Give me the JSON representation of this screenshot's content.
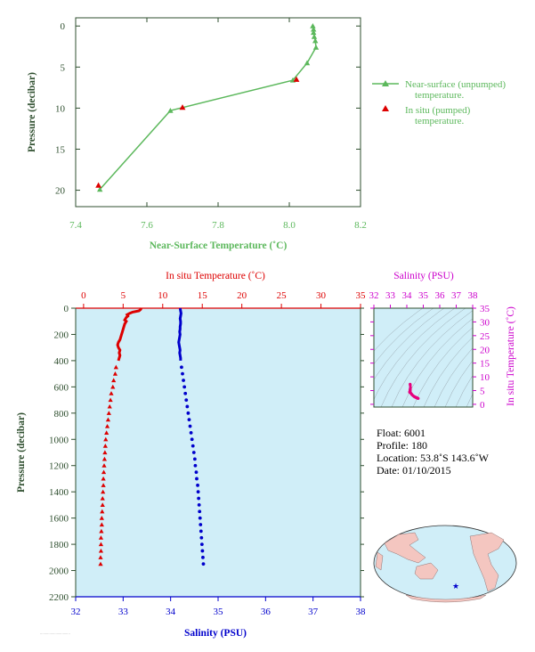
{
  "colors": {
    "near_surface": "#5cb85c",
    "in_situ_temp": "#dd0000",
    "salinity": "#0000cc",
    "ts_curve": "#e6007e",
    "axis_dark": "#2f4f2f",
    "magenta": "#cc00cc",
    "panel_bg": "#d0eef8"
  },
  "chart_data": [
    {
      "type": "line",
      "title": "",
      "xlabel": "Near-Surface Temperature (˚C)",
      "ylabel": "Pressure (decibar)",
      "xlim": [
        7.4,
        8.2
      ],
      "ylim": [
        22,
        -1
      ],
      "x_ticks": [
        "7.4",
        "7.6",
        "7.8",
        "8.0",
        "8.2"
      ],
      "y_ticks": [
        "0",
        "5",
        "10",
        "15",
        "20"
      ],
      "legend": [
        "Near-surface (unpumped) temperature.",
        "In situ (pumped) temperature."
      ],
      "legend_position": "right",
      "series": [
        {
          "name": "Near-surface (unpumped) temperature.",
          "marker": "triangle",
          "points": [
            [
              8.066,
              0.0
            ],
            [
              8.068,
              0.4
            ],
            [
              8.068,
              0.8
            ],
            [
              8.07,
              1.3
            ],
            [
              8.073,
              1.8
            ],
            [
              8.075,
              2.6
            ],
            [
              8.05,
              4.5
            ],
            [
              8.01,
              6.6
            ],
            [
              7.666,
              10.3
            ],
            [
              7.468,
              19.9
            ]
          ]
        },
        {
          "name": "In situ (pumped) temperature.",
          "marker": "triangle",
          "points": [
            [
              8.02,
              6.5
            ],
            [
              7.7,
              9.9
            ],
            [
              7.464,
              19.4
            ]
          ]
        }
      ]
    },
    {
      "type": "line",
      "title": "",
      "x_top_label": "In situ Temperature (˚C)",
      "x_top_ticks": [
        "0",
        "5",
        "10",
        "15",
        "20",
        "25",
        "30",
        "35"
      ],
      "x_top_lim": [
        -1,
        35
      ],
      "x_bottom_label": "Salinity (PSU)",
      "x_bottom_ticks": [
        "32",
        "33",
        "34",
        "35",
        "36",
        "37",
        "38"
      ],
      "x_bottom_lim": [
        32,
        38
      ],
      "ylabel": "Pressure (decibar)",
      "y_ticks": [
        "0",
        "200",
        "400",
        "600",
        "800",
        "1000",
        "1200",
        "1400",
        "1600",
        "1800",
        "2000",
        "2200"
      ],
      "ylim": [
        2200,
        0
      ],
      "series": [
        {
          "name": "In situ Temperature (˚C)",
          "axis": "top",
          "points": [
            [
              7.3,
              0
            ],
            [
              7.2,
              10
            ],
            [
              7.0,
              20
            ],
            [
              6.2,
              30
            ],
            [
              5.8,
              40
            ],
            [
              5.5,
              50
            ],
            [
              5.6,
              60
            ],
            [
              5.4,
              70
            ],
            [
              5.3,
              80
            ],
            [
              5.2,
              90
            ],
            [
              5.4,
              100
            ],
            [
              5.2,
              120
            ],
            [
              5.1,
              140
            ],
            [
              5.0,
              160
            ],
            [
              4.9,
              180
            ],
            [
              4.8,
              200
            ],
            [
              4.7,
              220
            ],
            [
              4.6,
              240
            ],
            [
              4.4,
              260
            ],
            [
              4.3,
              280
            ],
            [
              4.4,
              300
            ],
            [
              4.6,
              320
            ],
            [
              4.5,
              340
            ],
            [
              4.6,
              360
            ],
            [
              4.5,
              380
            ],
            [
              4.4,
              400
            ],
            [
              4.1,
              450
            ],
            [
              4.0,
              500
            ],
            [
              3.8,
              550
            ],
            [
              3.7,
              600
            ],
            [
              3.5,
              650
            ],
            [
              3.4,
              700
            ],
            [
              3.3,
              750
            ],
            [
              3.2,
              800
            ],
            [
              3.1,
              850
            ],
            [
              3.0,
              900
            ],
            [
              2.9,
              950
            ],
            [
              2.8,
              1000
            ],
            [
              2.75,
              1050
            ],
            [
              2.7,
              1100
            ],
            [
              2.65,
              1150
            ],
            [
              2.6,
              1200
            ],
            [
              2.55,
              1250
            ],
            [
              2.5,
              1300
            ],
            [
              2.5,
              1350
            ],
            [
              2.45,
              1400
            ],
            [
              2.4,
              1450
            ],
            [
              2.4,
              1500
            ],
            [
              2.35,
              1550
            ],
            [
              2.3,
              1600
            ],
            [
              2.3,
              1650
            ],
            [
              2.25,
              1700
            ],
            [
              2.2,
              1750
            ],
            [
              2.2,
              1800
            ],
            [
              2.2,
              1850
            ],
            [
              2.15,
              1900
            ],
            [
              2.15,
              1950
            ]
          ]
        },
        {
          "name": "Salinity (PSU)",
          "axis": "bottom",
          "points": [
            [
              34.2,
              0
            ],
            [
              34.21,
              20
            ],
            [
              34.22,
              40
            ],
            [
              34.21,
              60
            ],
            [
              34.2,
              80
            ],
            [
              34.21,
              100
            ],
            [
              34.21,
              120
            ],
            [
              34.2,
              140
            ],
            [
              34.2,
              160
            ],
            [
              34.19,
              180
            ],
            [
              34.2,
              200
            ],
            [
              34.19,
              220
            ],
            [
              34.18,
              240
            ],
            [
              34.17,
              260
            ],
            [
              34.18,
              280
            ],
            [
              34.19,
              300
            ],
            [
              34.2,
              320
            ],
            [
              34.19,
              340
            ],
            [
              34.2,
              360
            ],
            [
              34.21,
              380
            ],
            [
              34.21,
              400
            ],
            [
              34.23,
              450
            ],
            [
              34.25,
              500
            ],
            [
              34.27,
              550
            ],
            [
              34.29,
              600
            ],
            [
              34.31,
              650
            ],
            [
              34.33,
              700
            ],
            [
              34.35,
              750
            ],
            [
              34.37,
              800
            ],
            [
              34.39,
              850
            ],
            [
              34.41,
              900
            ],
            [
              34.43,
              950
            ],
            [
              34.45,
              1000
            ],
            [
              34.47,
              1050
            ],
            [
              34.49,
              1100
            ],
            [
              34.51,
              1150
            ],
            [
              34.52,
              1200
            ],
            [
              34.54,
              1250
            ],
            [
              34.55,
              1300
            ],
            [
              34.57,
              1350
            ],
            [
              34.58,
              1400
            ],
            [
              34.59,
              1450
            ],
            [
              34.6,
              1500
            ],
            [
              34.61,
              1550
            ],
            [
              34.62,
              1600
            ],
            [
              34.63,
              1650
            ],
            [
              34.64,
              1700
            ],
            [
              34.65,
              1750
            ],
            [
              34.66,
              1800
            ],
            [
              34.67,
              1850
            ],
            [
              34.68,
              1900
            ],
            [
              34.69,
              1950
            ]
          ]
        }
      ]
    },
    {
      "type": "scatter",
      "title": "",
      "x_top_label": "Salinity (PSU)",
      "x_top_ticks": [
        "32",
        "33",
        "34",
        "35",
        "36",
        "37",
        "38"
      ],
      "xlim": [
        32,
        38
      ],
      "ylabel": "In situ Temperature (˚C)",
      "y_ticks": [
        "0",
        "5",
        "10",
        "15",
        "20",
        "25",
        "30",
        "35"
      ],
      "ylim": [
        -1,
        35
      ],
      "series": [
        {
          "name": "T-S",
          "points": [
            [
              34.2,
              7.3
            ],
            [
              34.21,
              7.0
            ],
            [
              34.22,
              6.2
            ],
            [
              34.21,
              5.6
            ],
            [
              34.2,
              5.4
            ],
            [
              34.21,
              5.2
            ],
            [
              34.2,
              5.0
            ],
            [
              34.19,
              4.8
            ],
            [
              34.18,
              4.6
            ],
            [
              34.17,
              4.4
            ],
            [
              34.19,
              4.6
            ],
            [
              34.2,
              4.5
            ],
            [
              34.21,
              4.4
            ],
            [
              34.25,
              4.0
            ],
            [
              34.29,
              3.7
            ],
            [
              34.33,
              3.4
            ],
            [
              34.37,
              3.2
            ],
            [
              34.41,
              3.0
            ],
            [
              34.45,
              2.8
            ],
            [
              34.49,
              2.7
            ],
            [
              34.52,
              2.6
            ],
            [
              34.55,
              2.5
            ],
            [
              34.58,
              2.45
            ],
            [
              34.6,
              2.4
            ],
            [
              34.62,
              2.3
            ],
            [
              34.64,
              2.25
            ],
            [
              34.66,
              2.2
            ],
            [
              34.68,
              2.15
            ],
            [
              34.69,
              2.15
            ]
          ]
        }
      ]
    }
  ],
  "info": {
    "float": "Float:  6001",
    "profile": "Profile:  180",
    "location": "Location:  53.8˚S  143.6˚W",
    "date": "Date:  01/10/2015"
  }
}
